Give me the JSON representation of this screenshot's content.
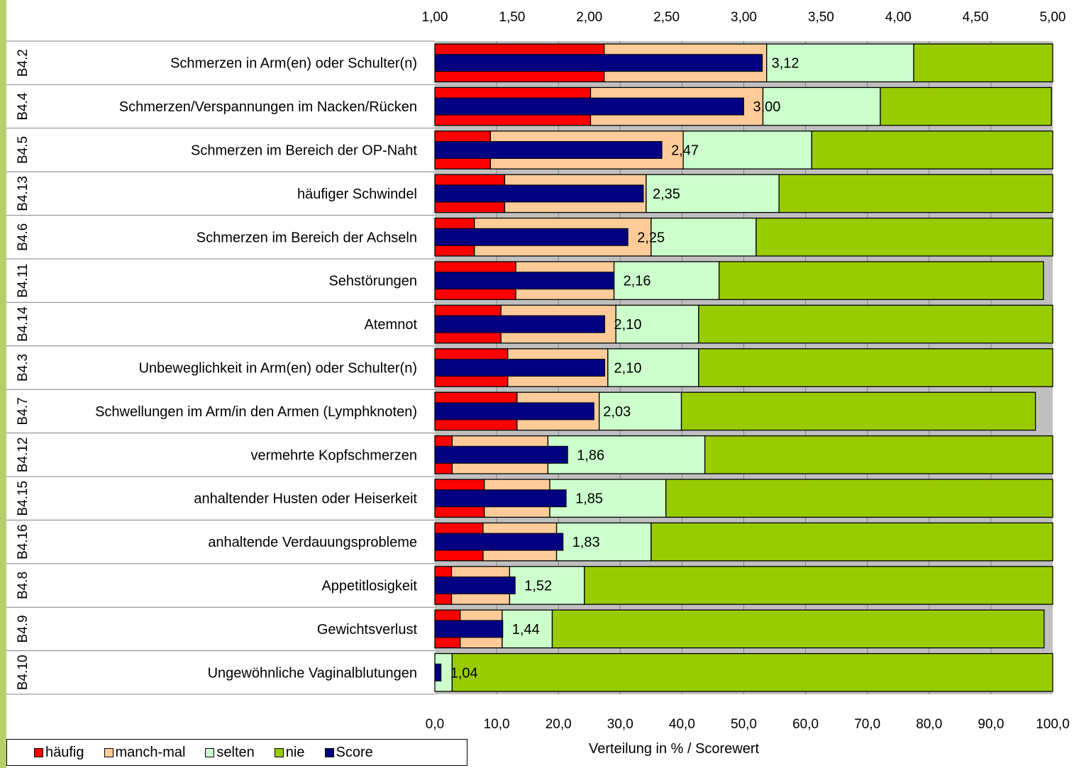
{
  "chart_data": {
    "type": "bar",
    "orientation": "horizontal",
    "stacked": true,
    "xlabel": "Verteilung in % / Scorewert",
    "x_bottom_ticks": [
      "0,0",
      "10,0",
      "20,0",
      "30,0",
      "40,0",
      "50,0",
      "60,0",
      "70,0",
      "80,0",
      "90,0",
      "100,0"
    ],
    "x_bottom_range": [
      0,
      100
    ],
    "x_top_ticks": [
      "1,00",
      "1,50",
      "2,00",
      "2,50",
      "3,00",
      "3,50",
      "4,00",
      "4,50",
      "5,00"
    ],
    "x_top_range": [
      1,
      5
    ],
    "grid": true,
    "legend_position": "bottom-left",
    "colors": {
      "haeufig": "#ff0000",
      "manchmal": "#ffcc99",
      "selten": "#ccffcc",
      "nie": "#99cc00",
      "score": "#000080",
      "plot_bg": "#c0c0c0"
    },
    "legend": [
      {
        "key": "haeufig",
        "label": "häufig"
      },
      {
        "key": "manchmal",
        "label": "manch-mal"
      },
      {
        "key": "selten",
        "label": "selten"
      },
      {
        "key": "nie",
        "label": "nie"
      },
      {
        "key": "score",
        "label": "Score"
      }
    ],
    "categories": [
      {
        "code": "B4.2",
        "label": "Schmerzen in Arm(en) oder Schulter(n)",
        "haeufig": 27.4,
        "manchmal": 26.3,
        "selten": 23.8,
        "nie": 22.5,
        "score": 3.12,
        "score_label": "3,12"
      },
      {
        "code": "B4.4",
        "label": "Schmerzen/Verspannungen im Nacken/Rücken",
        "haeufig": 25.2,
        "manchmal": 27.9,
        "selten": 19.0,
        "nie": 27.7,
        "score": 3.0,
        "score_label": "3,00"
      },
      {
        "code": "B4.5",
        "label": "Schmerzen im Bereich der OP-Naht",
        "haeufig": 9.0,
        "manchmal": 31.2,
        "selten": 20.8,
        "nie": 39.0,
        "score": 2.47,
        "score_label": "2,47"
      },
      {
        "code": "B4.13",
        "label": "häufiger Schwindel",
        "haeufig": 11.3,
        "manchmal": 22.9,
        "selten": 21.5,
        "nie": 44.3,
        "score": 2.35,
        "score_label": "2,35"
      },
      {
        "code": "B4.6",
        "label": "Schmerzen im Bereich der Achseln",
        "haeufig": 6.4,
        "manchmal": 28.6,
        "selten": 17.0,
        "nie": 48.0,
        "score": 2.25,
        "score_label": "2,25"
      },
      {
        "code": "B4.11",
        "label": "Sehstörungen",
        "haeufig": 13.1,
        "manchmal": 15.9,
        "selten": 17.0,
        "nie": 52.5,
        "score": 2.16,
        "score_label": "2,16"
      },
      {
        "code": "B4.14",
        "label": "Atemnot",
        "haeufig": 10.7,
        "manchmal": 18.6,
        "selten": 13.4,
        "nie": 57.3,
        "score": 2.1,
        "score_label": "2,10"
      },
      {
        "code": "B4.3",
        "label": "Unbeweglichkeit in Arm(en) oder Schulter(n)",
        "haeufig": 11.8,
        "manchmal": 16.2,
        "selten": 14.7,
        "nie": 57.3,
        "score": 2.1,
        "score_label": "2,10"
      },
      {
        "code": "B4.7",
        "label": "Schwellungen im Arm/in den Armen (Lymphknoten)",
        "haeufig": 13.3,
        "manchmal": 13.3,
        "selten": 13.3,
        "nie": 57.3,
        "score": 2.03,
        "score_label": "2,03"
      },
      {
        "code": "B4.12",
        "label": "vermehrte Kopfschmerzen",
        "haeufig": 2.8,
        "manchmal": 15.5,
        "selten": 25.4,
        "nie": 56.3,
        "score": 1.86,
        "score_label": "1,86"
      },
      {
        "code": "B4.15",
        "label": "anhaltender Husten oder Heiserkeit",
        "haeufig": 8.0,
        "manchmal": 10.6,
        "selten": 18.8,
        "nie": 62.6,
        "score": 1.85,
        "score_label": "1,85"
      },
      {
        "code": "B4.16",
        "label": "anhaltende Verdauungsprobleme",
        "haeufig": 7.8,
        "manchmal": 11.9,
        "selten": 15.3,
        "nie": 65.0,
        "score": 1.83,
        "score_label": "1,83"
      },
      {
        "code": "B4.8",
        "label": "Appetitlosigkeit",
        "haeufig": 2.7,
        "manchmal": 9.4,
        "selten": 12.1,
        "nie": 75.8,
        "score": 1.52,
        "score_label": "1,52"
      },
      {
        "code": "B4.9",
        "label": "Gewichtsverlust",
        "haeufig": 4.1,
        "manchmal": 6.8,
        "selten": 8.1,
        "nie": 79.6,
        "score": 1.44,
        "score_label": "1,44"
      },
      {
        "code": "B4.10",
        "label": "Ungewöhnliche Vaginalblutungen",
        "haeufig": 0.0,
        "manchmal": 0.0,
        "selten": 2.8,
        "nie": 97.2,
        "score": 1.04,
        "score_label": "1,04"
      }
    ]
  }
}
